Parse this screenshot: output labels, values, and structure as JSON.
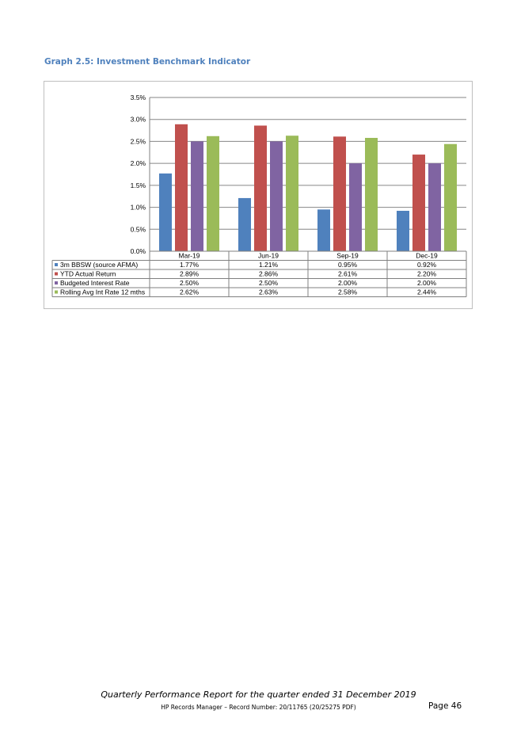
{
  "graph_title": "Graph 2.5: Investment Benchmark Indicator",
  "chart_data": {
    "type": "bar",
    "categories": [
      "Mar-19",
      "Jun-19",
      "Sep-19",
      "Dec-19"
    ],
    "series": [
      {
        "name": "3m BBSW (source AFMA)",
        "color": "#4f81bd",
        "values": [
          1.77,
          1.21,
          0.95,
          0.92
        ],
        "labels": [
          "1.77%",
          "1.21%",
          "0.95%",
          "0.92%"
        ]
      },
      {
        "name": "YTD Actual Return",
        "color": "#c0504d",
        "values": [
          2.89,
          2.86,
          2.61,
          2.2
        ],
        "labels": [
          "2.89%",
          "2.86%",
          "2.61%",
          "2.20%"
        ]
      },
      {
        "name": "Budgeted Interest Rate",
        "color": "#8064a2",
        "values": [
          2.5,
          2.5,
          2.0,
          2.0
        ],
        "labels": [
          "2.50%",
          "2.50%",
          "2.00%",
          "2.00%"
        ]
      },
      {
        "name": "Rolling Avg Int Rate 12 mths",
        "color": "#9bbb59",
        "values": [
          2.62,
          2.63,
          2.58,
          2.44
        ],
        "labels": [
          "2.62%",
          "2.63%",
          "2.58%",
          "2.44%"
        ]
      }
    ],
    "yticks": [
      "0.0%",
      "0.5%",
      "1.0%",
      "1.5%",
      "2.0%",
      "2.5%",
      "3.0%",
      "3.5%"
    ],
    "ylim": [
      0,
      3.5
    ],
    "grid": true,
    "legend": "data-table"
  },
  "footer": {
    "title": "Quarterly Performance Report for the quarter ended 31 December 2019",
    "record": "HP Records Manager – Record Number: 20/11765 (20/25275 PDF)",
    "page": "Page 46"
  }
}
